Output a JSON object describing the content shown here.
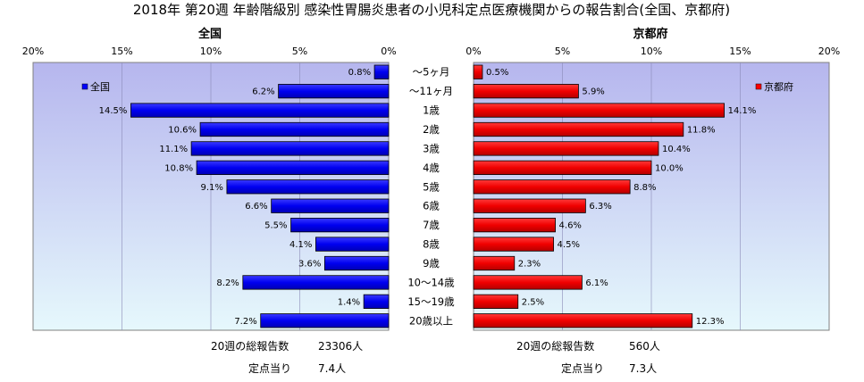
{
  "chart_data": {
    "type": "bar",
    "title": "2018年 第20週 年齢階級別 感染性胃腸炎患者の小児科定点医療機関からの報告割合(全国、京都府)",
    "categories": [
      "～5ヶ月",
      "～11ヶ月",
      "1歳",
      "2歳",
      "3歳",
      "4歳",
      "5歳",
      "6歳",
      "7歳",
      "8歳",
      "9歳",
      "10～14歳",
      "15～19歳",
      "20歳以上"
    ],
    "xlim": [
      0,
      20
    ],
    "x_ticks": [
      "20%",
      "15%",
      "10%",
      "5%",
      "0%",
      "0%",
      "5%",
      "10%",
      "15%",
      "20%"
    ],
    "grid": true,
    "panels": [
      {
        "name": "全国",
        "color": "#0000ff",
        "values": [
          0.8,
          6.2,
          14.5,
          10.6,
          11.1,
          10.8,
          9.1,
          6.6,
          5.5,
          4.1,
          3.6,
          8.2,
          1.4,
          7.2
        ],
        "labels": [
          "0.8%",
          "6.2%",
          "14.5%",
          "10.6%",
          "11.1%",
          "10.8%",
          "9.1%",
          "6.6%",
          "5.5%",
          "4.1%",
          "3.6%",
          "8.2%",
          "1.4%",
          "7.2%"
        ],
        "legend": "全国",
        "legend_placement": "top-left",
        "total_label": "20週の総報告数",
        "total_value": "23306人",
        "per_site_label": "定点当り",
        "per_site_value": "7.4人"
      },
      {
        "name": "京都府",
        "color": "#ff0000",
        "values": [
          0.5,
          5.9,
          14.1,
          11.8,
          10.4,
          10.0,
          8.8,
          6.3,
          4.6,
          4.5,
          2.3,
          6.1,
          2.5,
          12.3
        ],
        "labels": [
          "0.5%",
          "5.9%",
          "14.1%",
          "11.8%",
          "10.4%",
          "10.0%",
          "8.8%",
          "6.3%",
          "4.6%",
          "4.5%",
          "2.3%",
          "6.1%",
          "2.5%",
          "12.3%"
        ],
        "legend": "京都府",
        "legend_placement": "top-right",
        "total_label": "20週の総報告数",
        "total_value": "560人",
        "per_site_label": "定点当り",
        "per_site_value": "7.3人"
      }
    ]
  }
}
